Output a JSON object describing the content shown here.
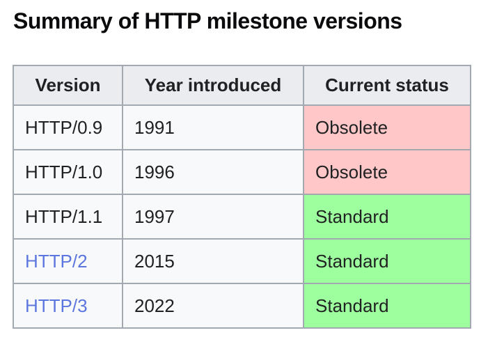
{
  "title": "Summary of HTTP milestone versions",
  "colors": {
    "header_bg": "#eaecf0",
    "cell_bg": "#f8f9fa",
    "border": "#a2a9b1",
    "text": "#202122",
    "link": "#5b76de",
    "obsolete_bg": "#ffc7c7",
    "standard_bg": "#9eff9e"
  },
  "table": {
    "headers": [
      "Version",
      "Year introduced",
      "Current status"
    ],
    "rows": [
      {
        "version": "HTTP/0.9",
        "year": "1991",
        "status": "Obsolete",
        "status_type": "obsolete",
        "is_link": false
      },
      {
        "version": "HTTP/1.0",
        "year": "1996",
        "status": "Obsolete",
        "status_type": "obsolete",
        "is_link": false
      },
      {
        "version": "HTTP/1.1",
        "year": "1997",
        "status": "Standard",
        "status_type": "standard",
        "is_link": false
      },
      {
        "version": "HTTP/2",
        "year": "2015",
        "status": "Standard",
        "status_type": "standard",
        "is_link": true
      },
      {
        "version": "HTTP/3",
        "year": "2022",
        "status": "Standard",
        "status_type": "standard",
        "is_link": true
      }
    ]
  }
}
